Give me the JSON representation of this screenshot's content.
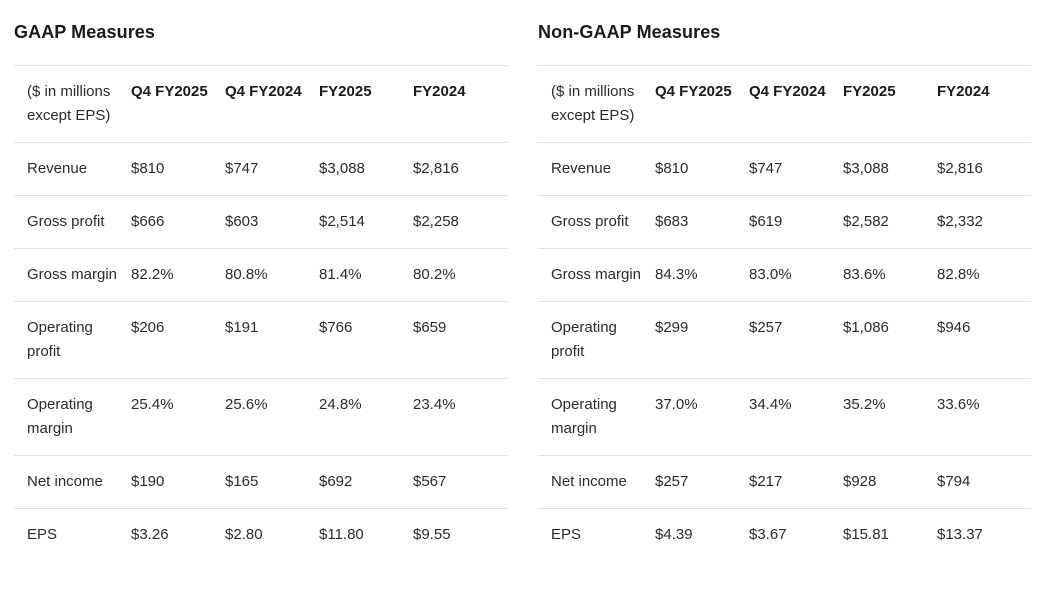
{
  "gaap": {
    "title": "GAAP Measures",
    "header": [
      "($ in millions except EPS)",
      "Q4 FY2025",
      "Q4 FY2024",
      "FY2025",
      "FY2024"
    ],
    "rows": [
      [
        "Revenue",
        "$810",
        "$747",
        "$3,088",
        "$2,816"
      ],
      [
        "Gross profit",
        "$666",
        "$603",
        "$2,514",
        "$2,258"
      ],
      [
        "Gross margin",
        "82.2%",
        "80.8%",
        "81.4%",
        "80.2%"
      ],
      [
        "Operating profit",
        "$206",
        "$191",
        "$766",
        "$659"
      ],
      [
        "Operating margin",
        "25.4%",
        "25.6%",
        "24.8%",
        "23.4%"
      ],
      [
        "Net income",
        "$190",
        "$165",
        "$692",
        "$567"
      ],
      [
        "EPS",
        "$3.26",
        "$2.80",
        "$11.80",
        "$9.55"
      ]
    ]
  },
  "non_gaap": {
    "title": "Non-GAAP Measures",
    "header": [
      "($ in millions except EPS)",
      "Q4 FY2025",
      "Q4 FY2024",
      "FY2025",
      "FY2024"
    ],
    "rows": [
      [
        "Revenue",
        "$810",
        "$747",
        "$3,088",
        "$2,816"
      ],
      [
        "Gross profit",
        "$683",
        "$619",
        "$2,582",
        "$2,332"
      ],
      [
        "Gross margin",
        "84.3%",
        "83.0%",
        "83.6%",
        "82.8%"
      ],
      [
        "Operating profit",
        "$299",
        "$257",
        "$1,086",
        "$946"
      ],
      [
        "Operating margin",
        "37.0%",
        "34.4%",
        "35.2%",
        "33.6%"
      ],
      [
        "Net income",
        "$257",
        "$217",
        "$928",
        "$794"
      ],
      [
        "EPS",
        "$4.39",
        "$3.67",
        "$15.81",
        "$13.37"
      ]
    ]
  }
}
